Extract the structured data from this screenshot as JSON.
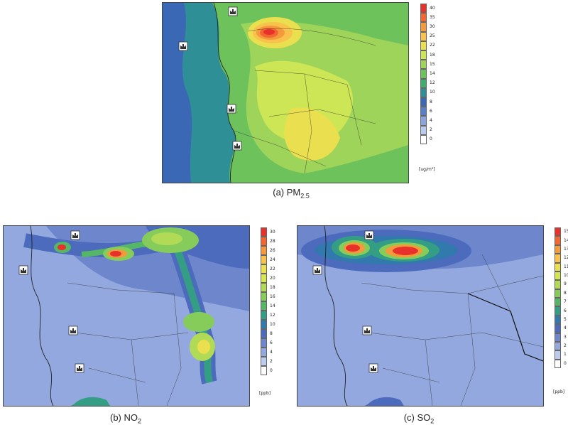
{
  "panels": [
    {
      "id": "pm25",
      "caption_prefix": "(a) PM",
      "caption_sub": "2.5",
      "unit": "[ug/m³]",
      "scale": [
        "40",
        "35",
        "30",
        "25",
        "22",
        "18",
        "15",
        "14",
        "12",
        "10",
        "8",
        "6",
        "4",
        "2",
        "0"
      ],
      "colors": [
        "#e8312a",
        "#f1672f",
        "#f59a3c",
        "#f8c24c",
        "#eadf4e",
        "#cde655",
        "#9fd45a",
        "#6ec25c",
        "#3fae6c",
        "#2f8f97",
        "#3b68b4",
        "#5a7fc8",
        "#8aa5dc",
        "#bacbee",
        "#ffffff"
      ]
    },
    {
      "id": "no2",
      "caption_prefix": "(b) NO",
      "caption_sub": "2",
      "unit": "[ppb]",
      "scale": [
        "30",
        "28",
        "26",
        "24",
        "22",
        "20",
        "18",
        "16",
        "14",
        "12",
        "10",
        "8",
        "6",
        "4",
        "2",
        "0"
      ],
      "colors": [
        "#e8312a",
        "#f1672f",
        "#f59a3c",
        "#f8c24c",
        "#eadf4e",
        "#d6e651",
        "#b1da57",
        "#86cc5b",
        "#55b766",
        "#339e84",
        "#3279ad",
        "#4d6bbd",
        "#6d86cc",
        "#92a8de",
        "#bccbee",
        "#ffffff"
      ]
    },
    {
      "id": "so2",
      "caption_prefix": "(c) SO",
      "caption_sub": "2",
      "unit": "[ppb]",
      "scale": [
        "15",
        "14",
        "13",
        "12",
        "11",
        "10",
        "9",
        "8",
        "7",
        "6",
        "5",
        "4",
        "3",
        "2",
        "1",
        "0"
      ],
      "colors": [
        "#e8312a",
        "#f1672f",
        "#f59a3c",
        "#f8c24c",
        "#eadf4e",
        "#d6e651",
        "#b1da57",
        "#86cc5b",
        "#55b766",
        "#339e84",
        "#3279ad",
        "#4d6bbd",
        "#6d86cc",
        "#92a8de",
        "#bccbee",
        "#ffffff"
      ]
    }
  ]
}
